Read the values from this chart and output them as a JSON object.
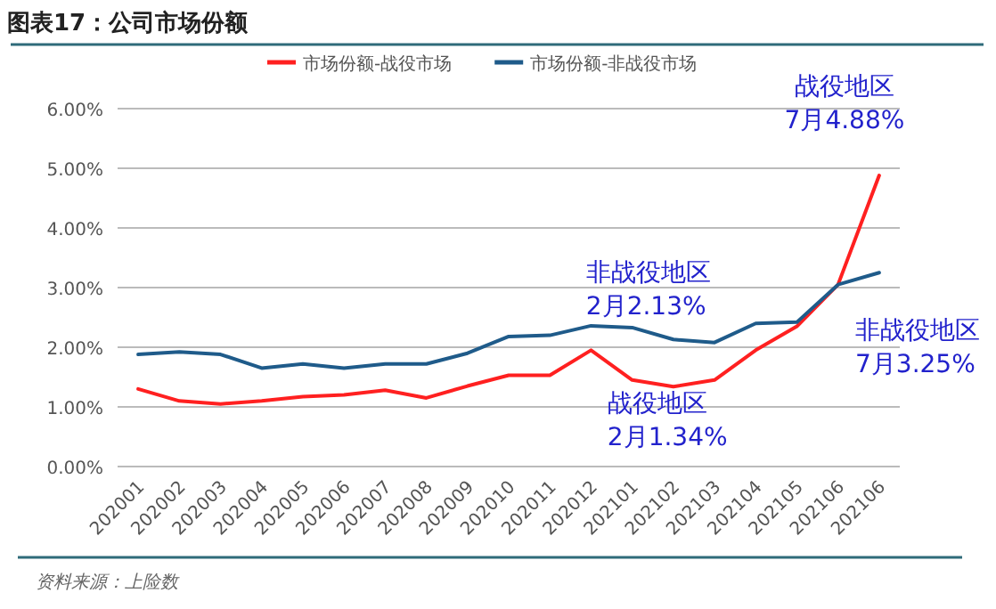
{
  "chart_data": {
    "type": "line",
    "title": "图表17：公司市场份额",
    "categories": [
      "202001",
      "202002",
      "202003",
      "202004",
      "202005",
      "202006",
      "202007",
      "202008",
      "202009",
      "202010",
      "202011",
      "202012",
      "202101",
      "202102",
      "202103",
      "202104",
      "202105",
      "202106",
      "202106"
    ],
    "series": [
      {
        "name": "市场份额-战役市场",
        "color": "#ff2020",
        "values": [
          1.3,
          1.1,
          1.05,
          1.1,
          1.17,
          1.2,
          1.28,
          1.15,
          1.35,
          1.53,
          1.53,
          1.95,
          1.45,
          1.34,
          1.45,
          1.95,
          2.35,
          3.05,
          4.88
        ]
      },
      {
        "name": "市场份额-非战役市场",
        "color": "#1f5b8a",
        "values": [
          1.88,
          1.92,
          1.88,
          1.65,
          1.72,
          1.65,
          1.72,
          1.72,
          1.9,
          2.18,
          2.2,
          2.36,
          2.33,
          2.13,
          2.08,
          2.4,
          2.42,
          3.05,
          3.25
        ]
      }
    ],
    "ylim": [
      0,
      6
    ],
    "yticks": [
      {
        "value": 0,
        "label": "0.00%"
      },
      {
        "value": 1,
        "label": "1.00%"
      },
      {
        "value": 2,
        "label": "2.00%"
      },
      {
        "value": 3,
        "label": "3.00%"
      },
      {
        "value": 4,
        "label": "4.00%"
      },
      {
        "value": 5,
        "label": "5.00%"
      },
      {
        "value": 6,
        "label": "6.00%"
      }
    ],
    "grid": "y",
    "legend": "top",
    "marker": "none",
    "line_style": "solid",
    "annotations": [
      "战役地区\n7月4.88%",
      "非战役地区\n7月3.25%",
      {
        "text": "非战役地区\n2月2.13%",
        "x": "202102",
        "y": 2.13
      },
      {
        "text": "战役地区\n2月1.34%",
        "x": "202102",
        "y": 1.34
      },
      "资料来源：上险数"
    ]
  }
}
